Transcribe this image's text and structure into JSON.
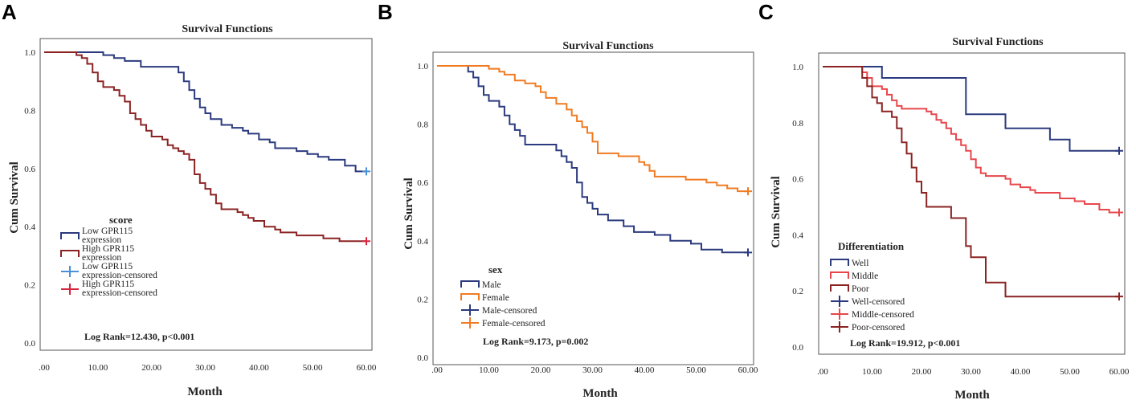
{
  "chart_data": [
    {
      "panel": "A",
      "type": "line",
      "title": "Survival Functions",
      "xlabel": "Month",
      "ylabel": "Cum Survival",
      "xlim": [
        0,
        60
      ],
      "ylim": [
        0,
        1
      ],
      "xticks": [
        ".00",
        "10.00",
        "20.00",
        "30.00",
        "40.00",
        "50.00",
        "60.00"
      ],
      "yticks": [
        "0.0",
        "0.2",
        "0.4",
        "0.6",
        "0.8",
        "1.0"
      ],
      "legend_title": "score",
      "legend": [
        {
          "label": [
            "Low GPR115",
            "expression"
          ],
          "kind": "step",
          "color": "#2b3a7e"
        },
        {
          "label": [
            "High GPR115",
            "expression"
          ],
          "kind": "step",
          "color": "#8b2323"
        },
        {
          "label": [
            "Low GPR115",
            "expression-censored"
          ],
          "kind": "plus",
          "color": "#4a90d9"
        },
        {
          "label": [
            "High GPR115",
            "expression-censored"
          ],
          "kind": "plus",
          "color": "#d7263d"
        }
      ],
      "annotation": "Log Rank=12.430, p<0.001",
      "series": [
        {
          "name": "Low GPR115 expression",
          "color": "#2b3a7e",
          "censor_color": "#4a90d9",
          "points": [
            [
              0,
              1.0
            ],
            [
              10,
              1.0
            ],
            [
              11,
              0.99
            ],
            [
              13,
              0.98
            ],
            [
              15,
              0.97
            ],
            [
              18,
              0.95
            ],
            [
              24,
              0.95
            ],
            [
              25,
              0.93
            ],
            [
              26,
              0.9
            ],
            [
              27,
              0.87
            ],
            [
              28,
              0.84
            ],
            [
              29,
              0.81
            ],
            [
              30,
              0.79
            ],
            [
              31,
              0.77
            ],
            [
              33,
              0.75
            ],
            [
              35,
              0.74
            ],
            [
              37,
              0.73
            ],
            [
              38,
              0.72
            ],
            [
              40,
              0.7
            ],
            [
              42,
              0.69
            ],
            [
              43,
              0.67
            ],
            [
              47,
              0.66
            ],
            [
              49,
              0.65
            ],
            [
              51,
              0.64
            ],
            [
              53,
              0.63
            ],
            [
              56,
              0.61
            ],
            [
              58,
              0.59
            ],
            [
              60,
              0.59
            ]
          ],
          "censor": [
            [
              60,
              0.59
            ]
          ]
        },
        {
          "name": "High GPR115 expression",
          "color": "#8b2323",
          "censor_color": "#d7263d",
          "points": [
            [
              0,
              1.0
            ],
            [
              5,
              1.0
            ],
            [
              6,
              0.99
            ],
            [
              7,
              0.98
            ],
            [
              8,
              0.96
            ],
            [
              9,
              0.93
            ],
            [
              10,
              0.9
            ],
            [
              11,
              0.88
            ],
            [
              13,
              0.87
            ],
            [
              14,
              0.85
            ],
            [
              15,
              0.83
            ],
            [
              16,
              0.79
            ],
            [
              17,
              0.77
            ],
            [
              18,
              0.75
            ],
            [
              19,
              0.73
            ],
            [
              20,
              0.71
            ],
            [
              22,
              0.7
            ],
            [
              23,
              0.68
            ],
            [
              24,
              0.67
            ],
            [
              25,
              0.66
            ],
            [
              26,
              0.65
            ],
            [
              27,
              0.63
            ],
            [
              28,
              0.58
            ],
            [
              29,
              0.55
            ],
            [
              30,
              0.53
            ],
            [
              31,
              0.51
            ],
            [
              32,
              0.48
            ],
            [
              33,
              0.46
            ],
            [
              36,
              0.45
            ],
            [
              37,
              0.44
            ],
            [
              38,
              0.43
            ],
            [
              39,
              0.42
            ],
            [
              41,
              0.4
            ],
            [
              43,
              0.39
            ],
            [
              44,
              0.38
            ],
            [
              47,
              0.37
            ],
            [
              52,
              0.36
            ],
            [
              55,
              0.35
            ],
            [
              60,
              0.35
            ]
          ],
          "censor": [
            [
              60,
              0.35
            ]
          ]
        }
      ]
    },
    {
      "panel": "B",
      "type": "line",
      "title": "Survival Functions",
      "xlabel": "Month",
      "ylabel": "Cum Survival",
      "xlim": [
        0,
        60
      ],
      "ylim": [
        0,
        1
      ],
      "xticks": [
        ".00",
        "10.00",
        "20.00",
        "30.00",
        "40.00",
        "50.00",
        "60.00"
      ],
      "yticks": [
        "0.0",
        "0.2",
        "0.4",
        "0.6",
        "0.8",
        "1.0"
      ],
      "legend_title": "sex",
      "legend": [
        {
          "label": [
            "Male"
          ],
          "kind": "step",
          "color": "#2b3a7e"
        },
        {
          "label": [
            "Female"
          ],
          "kind": "step",
          "color": "#f07b23"
        },
        {
          "label": [
            "Male-censored"
          ],
          "kind": "plus",
          "color": "#2b3a7e"
        },
        {
          "label": [
            "Female-censored"
          ],
          "kind": "plus",
          "color": "#f07b23"
        }
      ],
      "annotation": "Log Rank=9.173, p=0.002",
      "series": [
        {
          "name": "Male",
          "color": "#2b3a7e",
          "censor_color": "#2b3a7e",
          "points": [
            [
              0,
              1.0
            ],
            [
              5,
              1.0
            ],
            [
              6,
              0.98
            ],
            [
              7,
              0.96
            ],
            [
              8,
              0.93
            ],
            [
              9,
              0.9
            ],
            [
              10,
              0.88
            ],
            [
              12,
              0.86
            ],
            [
              13,
              0.83
            ],
            [
              14,
              0.8
            ],
            [
              15,
              0.78
            ],
            [
              16,
              0.76
            ],
            [
              17,
              0.73
            ],
            [
              22,
              0.73
            ],
            [
              23,
              0.71
            ],
            [
              24,
              0.69
            ],
            [
              25,
              0.67
            ],
            [
              26,
              0.65
            ],
            [
              27,
              0.6
            ],
            [
              28,
              0.55
            ],
            [
              29,
              0.53
            ],
            [
              30,
              0.51
            ],
            [
              31,
              0.49
            ],
            [
              33,
              0.47
            ],
            [
              36,
              0.45
            ],
            [
              38,
              0.43
            ],
            [
              42,
              0.42
            ],
            [
              45,
              0.4
            ],
            [
              49,
              0.39
            ],
            [
              51,
              0.37
            ],
            [
              55,
              0.36
            ],
            [
              60,
              0.36
            ]
          ],
          "censor": [
            [
              60,
              0.36
            ]
          ]
        },
        {
          "name": "Female",
          "color": "#f07b23",
          "censor_color": "#f07b23",
          "points": [
            [
              0,
              1.0
            ],
            [
              9,
              1.0
            ],
            [
              10,
              0.99
            ],
            [
              12,
              0.98
            ],
            [
              13,
              0.97
            ],
            [
              15,
              0.95
            ],
            [
              17,
              0.94
            ],
            [
              19,
              0.93
            ],
            [
              20,
              0.91
            ],
            [
              21,
              0.89
            ],
            [
              23,
              0.87
            ],
            [
              25,
              0.85
            ],
            [
              26,
              0.83
            ],
            [
              27,
              0.81
            ],
            [
              28,
              0.79
            ],
            [
              29,
              0.77
            ],
            [
              30,
              0.74
            ],
            [
              31,
              0.7
            ],
            [
              34,
              0.7
            ],
            [
              35,
              0.69
            ],
            [
              38,
              0.69
            ],
            [
              39,
              0.67
            ],
            [
              40,
              0.66
            ],
            [
              41,
              0.64
            ],
            [
              42,
              0.62
            ],
            [
              47,
              0.62
            ],
            [
              48,
              0.61
            ],
            [
              52,
              0.6
            ],
            [
              54,
              0.59
            ],
            [
              56,
              0.58
            ],
            [
              58,
              0.57
            ],
            [
              60,
              0.57
            ]
          ],
          "censor": [
            [
              60,
              0.57
            ]
          ]
        }
      ]
    },
    {
      "panel": "C",
      "type": "line",
      "title": "Survival Functions",
      "xlabel": "Month",
      "ylabel": "Cum Survival",
      "xlim": [
        0,
        60
      ],
      "ylim": [
        0,
        1
      ],
      "xticks": [
        ".00",
        "10.00",
        "20.00",
        "30.00",
        "40.00",
        "50.00",
        "60.00"
      ],
      "yticks": [
        "0.0",
        "0.2",
        "0.4",
        "0.6",
        "0.8",
        "1.0"
      ],
      "legend_title": "Differentiation",
      "legend": [
        {
          "label": [
            "Well"
          ],
          "kind": "step",
          "color": "#2b3a7e"
        },
        {
          "label": [
            "Middle"
          ],
          "kind": "step",
          "color": "#e8474c"
        },
        {
          "label": [
            "Poor"
          ],
          "kind": "step",
          "color": "#8b2323"
        },
        {
          "label": [
            "Well-censored"
          ],
          "kind": "plus",
          "color": "#2b3a7e"
        },
        {
          "label": [
            "Middle-censored"
          ],
          "kind": "plus",
          "color": "#e8474c"
        },
        {
          "label": [
            "Poor-censored"
          ],
          "kind": "plus",
          "color": "#8b2323"
        }
      ],
      "annotation": "Log Rank=19.912, p<0.001",
      "series": [
        {
          "name": "Well",
          "color": "#2b3a7e",
          "censor_color": "#2b3a7e",
          "points": [
            [
              0,
              1.0
            ],
            [
              12,
              1.0
            ],
            [
              12,
              0.96
            ],
            [
              28,
              0.96
            ],
            [
              29,
              0.83
            ],
            [
              36,
              0.83
            ],
            [
              37,
              0.78
            ],
            [
              45,
              0.78
            ],
            [
              46,
              0.74
            ],
            [
              50,
              0.74
            ],
            [
              50,
              0.7
            ],
            [
              60,
              0.7
            ]
          ],
          "censor": [
            [
              60,
              0.7
            ]
          ]
        },
        {
          "name": "Middle",
          "color": "#e8474c",
          "censor_color": "#e8474c",
          "points": [
            [
              0,
              1.0
            ],
            [
              7,
              1.0
            ],
            [
              8,
              0.98
            ],
            [
              9,
              0.96
            ],
            [
              10,
              0.93
            ],
            [
              12,
              0.92
            ],
            [
              13,
              0.9
            ],
            [
              14,
              0.88
            ],
            [
              15,
              0.86
            ],
            [
              16,
              0.85
            ],
            [
              20,
              0.85
            ],
            [
              21,
              0.84
            ],
            [
              22,
              0.83
            ],
            [
              23,
              0.81
            ],
            [
              24,
              0.8
            ],
            [
              25,
              0.78
            ],
            [
              26,
              0.76
            ],
            [
              27,
              0.74
            ],
            [
              28,
              0.72
            ],
            [
              29,
              0.7
            ],
            [
              30,
              0.67
            ],
            [
              31,
              0.64
            ],
            [
              32,
              0.62
            ],
            [
              33,
              0.61
            ],
            [
              36,
              0.61
            ],
            [
              37,
              0.6
            ],
            [
              38,
              0.58
            ],
            [
              40,
              0.57
            ],
            [
              42,
              0.56
            ],
            [
              43,
              0.55
            ],
            [
              46,
              0.55
            ],
            [
              48,
              0.53
            ],
            [
              51,
              0.52
            ],
            [
              53,
              0.51
            ],
            [
              56,
              0.49
            ],
            [
              58,
              0.48
            ],
            [
              60,
              0.48
            ]
          ],
          "censor": [
            [
              60,
              0.48
            ]
          ]
        },
        {
          "name": "Poor",
          "color": "#8b2323",
          "censor_color": "#8b2323",
          "points": [
            [
              0,
              1.0
            ],
            [
              7,
              1.0
            ],
            [
              8,
              0.96
            ],
            [
              9,
              0.93
            ],
            [
              10,
              0.89
            ],
            [
              11,
              0.87
            ],
            [
              12,
              0.84
            ],
            [
              13,
              0.84
            ],
            [
              14,
              0.82
            ],
            [
              15,
              0.78
            ],
            [
              16,
              0.73
            ],
            [
              17,
              0.69
            ],
            [
              18,
              0.64
            ],
            [
              19,
              0.59
            ],
            [
              20,
              0.55
            ],
            [
              21,
              0.5
            ],
            [
              26,
              0.5
            ],
            [
              26,
              0.46
            ],
            [
              28,
              0.46
            ],
            [
              29,
              0.36
            ],
            [
              30,
              0.32
            ],
            [
              32,
              0.32
            ],
            [
              33,
              0.23
            ],
            [
              37,
              0.23
            ],
            [
              37,
              0.18
            ],
            [
              60,
              0.18
            ]
          ],
          "censor": [
            [
              60,
              0.18
            ]
          ]
        }
      ]
    }
  ]
}
